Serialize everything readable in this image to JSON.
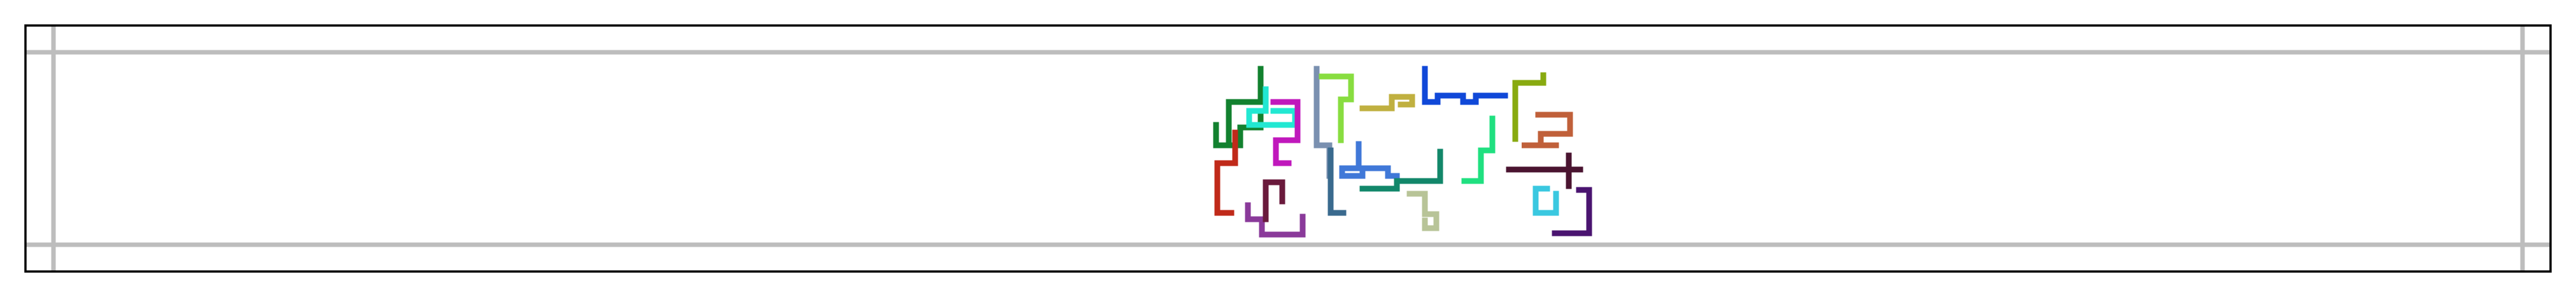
{
  "figure": {
    "background": "#ffffff",
    "frame_color": "#000000",
    "grid_color": "#bdbdbd"
  },
  "traces": [
    {
      "id": "trace-dark-green",
      "color": "#12812f",
      "path": [
        [
          1980,
          108
        ],
        [
          1980,
          160
        ],
        [
          1930,
          160
        ],
        [
          1930,
          228
        ],
        [
          1948,
          228
        ],
        [
          1948,
          200
        ],
        [
          1980,
          200
        ],
        [
          1980,
          176
        ]
      ]
    },
    {
      "id": "trace-green-short",
      "color": "#12812f",
      "path": [
        [
          1910,
          196
        ],
        [
          1910,
          228
        ],
        [
          1930,
          228
        ]
      ]
    },
    {
      "id": "trace-red",
      "color": "#c02a1a",
      "path": [
        [
          1940,
          208
        ],
        [
          1940,
          256
        ],
        [
          1912,
          256
        ],
        [
          1912,
          334
        ],
        [
          1934,
          334
        ]
      ]
    },
    {
      "id": "trace-cyan",
      "color": "#22e8d2",
      "path": [
        [
          1988,
          140
        ],
        [
          1988,
          174
        ],
        [
          1962,
          174
        ],
        [
          1962,
          196
        ],
        [
          2034,
          196
        ],
        [
          2034,
          174
        ],
        [
          2000,
          174
        ]
      ]
    },
    {
      "id": "trace-magenta",
      "color": "#c018bc",
      "path": [
        [
          2000,
          160
        ],
        [
          2038,
          160
        ],
        [
          2038,
          220
        ],
        [
          2004,
          220
        ],
        [
          2004,
          256
        ],
        [
          2024,
          256
        ]
      ]
    },
    {
      "id": "trace-purple",
      "color": "#8a3a9a",
      "path": [
        [
          1960,
          322
        ],
        [
          1960,
          344
        ],
        [
          1982,
          344
        ],
        [
          1982,
          368
        ],
        [
          2046,
          368
        ],
        [
          2046,
          340
        ]
      ]
    },
    {
      "id": "trace-maroon",
      "color": "#6a1a3c",
      "path": [
        [
          1988,
          344
        ],
        [
          1988,
          286
        ],
        [
          2014,
          286
        ],
        [
          2014,
          316
        ]
      ]
    },
    {
      "id": "trace-slate",
      "color": "#7a90b0",
      "path": [
        [
          2068,
          108
        ],
        [
          2068,
          228
        ],
        [
          2088,
          228
        ],
        [
          2088,
          276
        ]
      ]
    },
    {
      "id": "trace-steel",
      "color": "#3a6a8e",
      "path": [
        [
          2090,
          236
        ],
        [
          2090,
          334
        ],
        [
          2110,
          334
        ]
      ]
    },
    {
      "id": "trace-lime",
      "color": "#88dd40",
      "path": [
        [
          2076,
          120
        ],
        [
          2122,
          120
        ],
        [
          2122,
          156
        ],
        [
          2106,
          156
        ],
        [
          2106,
          220
        ]
      ]
    },
    {
      "id": "trace-olive",
      "color": "#c0b040",
      "path": [
        [
          2140,
          170
        ],
        [
          2186,
          170
        ],
        [
          2186,
          152
        ],
        [
          2218,
          152
        ],
        [
          2218,
          164
        ],
        [
          2200,
          164
        ]
      ]
    },
    {
      "id": "trace-blue",
      "color": "#1048d8",
      "path": [
        [
          2238,
          108
        ],
        [
          2238,
          160
        ],
        [
          2258,
          160
        ],
        [
          2258,
          150
        ],
        [
          2298,
          150
        ],
        [
          2298,
          160
        ],
        [
          2318,
          160
        ],
        [
          2318,
          150
        ],
        [
          2364,
          150
        ]
      ]
    },
    {
      "id": "trace-mid-blue",
      "color": "#4078d8",
      "path": [
        [
          2134,
          226
        ],
        [
          2134,
          264
        ],
        [
          2108,
          264
        ],
        [
          2108,
          276
        ],
        [
          2140,
          276
        ],
        [
          2140,
          264
        ],
        [
          2180,
          264
        ],
        [
          2180,
          276
        ],
        [
          2194,
          276
        ]
      ]
    },
    {
      "id": "trace-teal",
      "color": "#12876a",
      "path": [
        [
          2140,
          296
        ],
        [
          2194,
          296
        ],
        [
          2194,
          284
        ],
        [
          2262,
          284
        ],
        [
          2262,
          238
        ]
      ]
    },
    {
      "id": "trace-sage",
      "color": "#b8c498",
      "path": [
        [
          2214,
          304
        ],
        [
          2238,
          304
        ],
        [
          2238,
          336
        ],
        [
          2256,
          336
        ],
        [
          2256,
          358
        ],
        [
          2238,
          358
        ],
        [
          2238,
          346
        ]
      ]
    },
    {
      "id": "trace-spring-green",
      "color": "#20e080",
      "path": [
        [
          2344,
          186
        ],
        [
          2344,
          236
        ],
        [
          2326,
          236
        ],
        [
          2326,
          284
        ],
        [
          2300,
          284
        ]
      ]
    },
    {
      "id": "trace-olive-dark",
      "color": "#88aa10",
      "path": [
        [
          2380,
          218
        ],
        [
          2380,
          130
        ],
        [
          2424,
          130
        ],
        [
          2424,
          118
        ]
      ]
    },
    {
      "id": "trace-sienna",
      "color": "#c0603a",
      "path": [
        [
          2416,
          180
        ],
        [
          2466,
          180
        ],
        [
          2466,
          210
        ],
        [
          2420,
          210
        ],
        [
          2420,
          228
        ],
        [
          2390,
          228
        ],
        [
          2444,
          228
        ]
      ]
    },
    {
      "id": "trace-dark-plum",
      "color": "#4a1430",
      "path": [
        [
          2370,
          266
        ],
        [
          2482,
          266
        ]
      ]
    },
    {
      "id": "trace-dark-plum-v",
      "color": "#4a1430",
      "path": [
        [
          2464,
          244
        ],
        [
          2464,
          292
        ]
      ]
    },
    {
      "id": "trace-sky",
      "color": "#3ac8e0",
      "path": [
        [
          2430,
          296
        ],
        [
          2412,
          296
        ],
        [
          2412,
          334
        ],
        [
          2444,
          334
        ],
        [
          2444,
          304
        ]
      ]
    },
    {
      "id": "trace-indigo",
      "color": "#4a1470",
      "path": [
        [
          2480,
          298
        ],
        [
          2496,
          298
        ],
        [
          2496,
          366
        ],
        [
          2442,
          366
        ]
      ]
    }
  ]
}
